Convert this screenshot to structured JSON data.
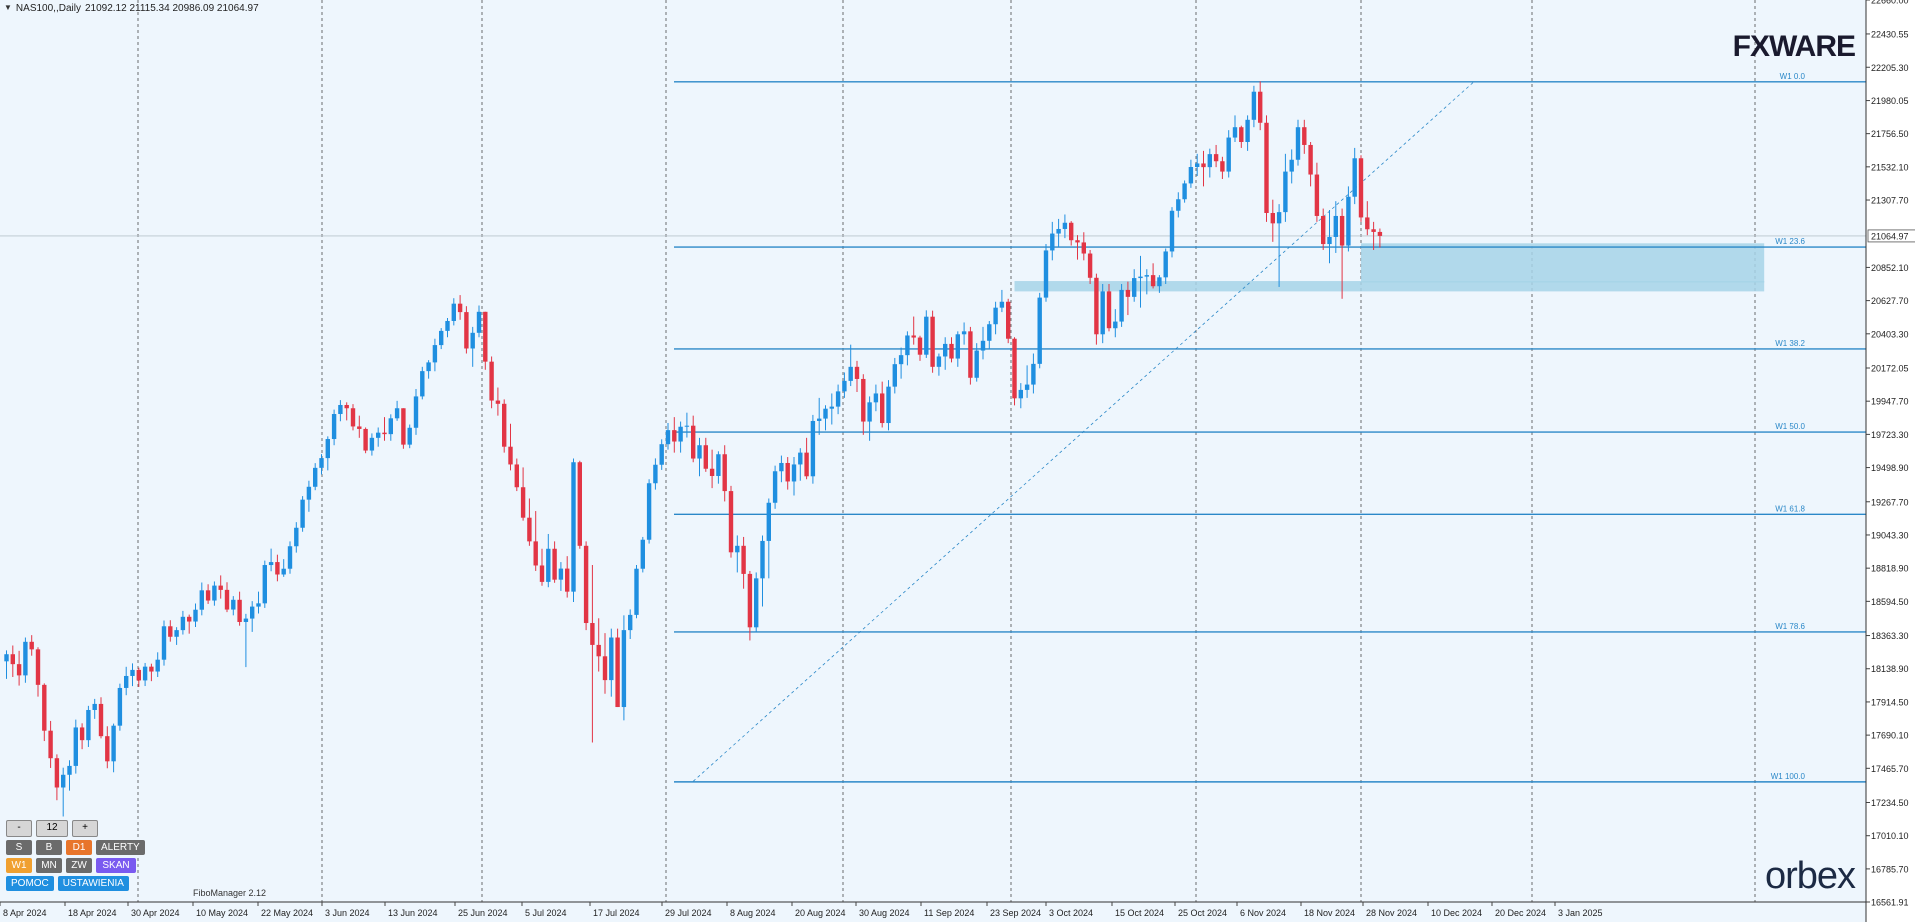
{
  "header": {
    "symbol": "NAS100,,Daily",
    "ohlc": "21092.12 21115.34 20986.09 21064.97"
  },
  "logos": {
    "top": "FXWARE",
    "bottom": "orbex"
  },
  "indicator_label": "FiboManager 2.12",
  "panel": {
    "row1": [
      "-",
      "12",
      "+"
    ],
    "row2": [
      "S",
      "B",
      "D1",
      "ALERTY"
    ],
    "row3": [
      "W1",
      "MN",
      "ZW",
      "SKAN"
    ],
    "row4": [
      "POMOC",
      "USTAWIENIA"
    ]
  },
  "colors": {
    "up": "#1f8fe0",
    "down": "#e23545",
    "fib": "#2b88c8",
    "zone": "#a6d4e8",
    "bg": "#eef6fd"
  },
  "chart_data": {
    "type": "candlestick",
    "title": "",
    "ylim": [
      16561.91,
      22660.0
    ],
    "y_ticks": [
      "22660.00",
      "22430.55",
      "22205.30",
      "21980.05",
      "21756.50",
      "21532.10",
      "21307.70",
      "21064.97",
      "20852.10",
      "20627.70",
      "20403.30",
      "20172.05",
      "19947.70",
      "19723.30",
      "19498.90",
      "19267.70",
      "19043.30",
      "18818.90",
      "18594.50",
      "18363.30",
      "18138.90",
      "17914.50",
      "17690.10",
      "17465.70",
      "17234.50",
      "17010.10",
      "16785.70",
      "16561.91"
    ],
    "x_ticks": [
      "8 Apr 2024",
      "18 Apr 2024",
      "30 Apr 2024",
      "10 May 2024",
      "22 May 2024",
      "3 Jun 2024",
      "13 Jun 2024",
      "25 Jun 2024",
      "5 Jul 2024",
      "17 Jul 2024",
      "29 Jul 2024",
      "8 Aug 2024",
      "20 Aug 2024",
      "30 Aug 2024",
      "11 Sep 2024",
      "23 Sep 2024",
      "3 Oct 2024",
      "15 Oct 2024",
      "25 Oct 2024",
      "6 Nov 2024",
      "18 Nov 2024",
      "28 Nov 2024",
      "10 Dec 2024",
      "20 Dec 2024",
      "3 Jan 2025"
    ],
    "current_price": "21064.97",
    "fib_levels": [
      {
        "label": "W1 0.0",
        "value": 22107
      },
      {
        "label": "W1 23.6",
        "value": 20990
      },
      {
        "label": "W1 38.2",
        "value": 20301
      },
      {
        "label": "W1 50.0",
        "value": 19739
      },
      {
        "label": "W1 61.8",
        "value": 19183
      },
      {
        "label": "W1 78.6",
        "value": 18388
      },
      {
        "label": "W1 100.0",
        "value": 17374
      }
    ],
    "zones": [
      {
        "from_index": 160,
        "to_index": 279,
        "low": 20690,
        "high": 20760
      },
      {
        "from_index": 215,
        "to_index": 279,
        "low": 20750,
        "high": 21015
      }
    ],
    "trendline": {
      "from": {
        "index": 109,
        "value": 17378
      },
      "to": {
        "index": 233,
        "value": 22110
      }
    },
    "candles": [
      [
        18189,
        18263,
        18070,
        18237
      ],
      [
        18237,
        18296,
        18083,
        18170
      ],
      [
        18170,
        18260,
        18025,
        18094
      ],
      [
        18094,
        18350,
        18044,
        18321
      ],
      [
        18321,
        18366,
        18227,
        18270
      ],
      [
        18270,
        18284,
        17950,
        18030
      ],
      [
        18030,
        18040,
        17650,
        17720
      ],
      [
        17720,
        17786,
        17468,
        17534
      ],
      [
        17534,
        17560,
        17250,
        17336
      ],
      [
        17336,
        17470,
        17140,
        17422
      ],
      [
        17422,
        17520,
        17315,
        17482
      ],
      [
        17482,
        17795,
        17430,
        17742
      ],
      [
        17742,
        17770,
        17595,
        17656
      ],
      [
        17656,
        17888,
        17610,
        17860
      ],
      [
        17860,
        17935,
        17800,
        17901
      ],
      [
        17901,
        17946,
        17668,
        17683
      ],
      [
        17683,
        17750,
        17466,
        17513
      ],
      [
        17513,
        17768,
        17439,
        17754
      ],
      [
        17754,
        18038,
        17720,
        18009
      ],
      [
        18009,
        18152,
        17960,
        18090
      ],
      [
        18090,
        18175,
        18021,
        18131
      ],
      [
        18131,
        18146,
        18016,
        18060
      ],
      [
        18060,
        18178,
        18022,
        18153
      ],
      [
        18153,
        18173,
        18055,
        18120
      ],
      [
        18120,
        18250,
        18083,
        18200
      ],
      [
        18200,
        18465,
        18160,
        18426
      ],
      [
        18426,
        18467,
        18322,
        18355
      ],
      [
        18355,
        18420,
        18300,
        18400
      ],
      [
        18400,
        18530,
        18370,
        18490
      ],
      [
        18490,
        18505,
        18376,
        18458
      ],
      [
        18458,
        18580,
        18421,
        18538
      ],
      [
        18538,
        18722,
        18500,
        18669
      ],
      [
        18669,
        18710,
        18577,
        18600
      ],
      [
        18600,
        18729,
        18565,
        18701
      ],
      [
        18701,
        18770,
        18613,
        18672
      ],
      [
        18672,
        18724,
        18522,
        18539
      ],
      [
        18539,
        18630,
        18500,
        18605
      ],
      [
        18605,
        18660,
        18430,
        18455
      ],
      [
        18455,
        18510,
        18150,
        18478
      ],
      [
        18478,
        18596,
        18388,
        18559
      ],
      [
        18559,
        18660,
        18512,
        18581
      ],
      [
        18581,
        18870,
        18550,
        18840
      ],
      [
        18840,
        18951,
        18798,
        18860
      ],
      [
        18860,
        18910,
        18730,
        18776
      ],
      [
        18776,
        18880,
        18760,
        18815
      ],
      [
        18815,
        19000,
        18781,
        18967
      ],
      [
        18967,
        19130,
        18924,
        19092
      ],
      [
        19092,
        19306,
        19065,
        19282
      ],
      [
        19282,
        19410,
        19200,
        19369
      ],
      [
        19369,
        19529,
        19346,
        19497
      ],
      [
        19497,
        19590,
        19452,
        19563
      ],
      [
        19563,
        19710,
        19480,
        19692
      ],
      [
        19692,
        19891,
        19650,
        19861
      ],
      [
        19861,
        19955,
        19812,
        19922
      ],
      [
        19922,
        19940,
        19818,
        19900
      ],
      [
        19900,
        19928,
        19750,
        19777
      ],
      [
        19777,
        19850,
        19700,
        19760
      ],
      [
        19760,
        19770,
        19596,
        19614
      ],
      [
        19614,
        19730,
        19580,
        19700
      ],
      [
        19700,
        19770,
        19640,
        19735
      ],
      [
        19735,
        19840,
        19680,
        19725
      ],
      [
        19725,
        19859,
        19680,
        19832
      ],
      [
        19832,
        19950,
        19815,
        19900
      ],
      [
        19900,
        19900,
        19626,
        19654
      ],
      [
        19654,
        19790,
        19630,
        19768
      ],
      [
        19768,
        20030,
        19720,
        19980
      ],
      [
        19980,
        20180,
        19960,
        20151
      ],
      [
        20151,
        20225,
        20100,
        20210
      ],
      [
        20210,
        20370,
        20150,
        20327
      ],
      [
        20327,
        20442,
        20300,
        20423
      ],
      [
        20423,
        20510,
        20380,
        20490
      ],
      [
        20490,
        20644,
        20460,
        20607
      ],
      [
        20607,
        20665,
        20498,
        20550
      ],
      [
        20550,
        20590,
        20270,
        20304
      ],
      [
        20304,
        20450,
        20180,
        20410
      ],
      [
        20410,
        20595,
        20380,
        20552
      ],
      [
        20552,
        20552,
        20160,
        20215
      ],
      [
        20215,
        20250,
        19900,
        19952
      ],
      [
        19952,
        20040,
        19850,
        19930
      ],
      [
        19930,
        19960,
        19600,
        19640
      ],
      [
        19640,
        19795,
        19480,
        19520
      ],
      [
        19520,
        19560,
        19340,
        19366
      ],
      [
        19366,
        19500,
        19140,
        19160
      ],
      [
        19160,
        19290,
        18970,
        19000
      ],
      [
        19000,
        19205,
        18800,
        18837
      ],
      [
        18837,
        18950,
        18700,
        18726
      ],
      [
        18726,
        19050,
        18690,
        18950
      ],
      [
        18950,
        19000,
        18720,
        18741
      ],
      [
        18741,
        18860,
        18665,
        18816
      ],
      [
        18816,
        18900,
        18620,
        18660
      ],
      [
        18660,
        19560,
        18590,
        19535
      ],
      [
        19535,
        19545,
        18950,
        18970
      ],
      [
        18970,
        19000,
        18400,
        18448
      ],
      [
        18448,
        18840,
        17640,
        18300
      ],
      [
        18300,
        18480,
        18120,
        18223
      ],
      [
        18223,
        18380,
        17970,
        18062
      ],
      [
        18062,
        18410,
        17950,
        18350
      ],
      [
        18350,
        18410,
        17880,
        17880
      ],
      [
        17880,
        18500,
        17790,
        18400
      ],
      [
        18400,
        18540,
        18340,
        18503
      ],
      [
        18503,
        18840,
        18480,
        18815
      ],
      [
        18815,
        19030,
        18790,
        19011
      ],
      [
        19011,
        19420,
        18985,
        19393
      ],
      [
        19393,
        19561,
        19350,
        19518
      ],
      [
        19518,
        19690,
        19483,
        19657
      ],
      [
        19657,
        19800,
        19620,
        19752
      ],
      [
        19752,
        19840,
        19600,
        19675
      ],
      [
        19675,
        19810,
        19600,
        19775
      ],
      [
        19775,
        19870,
        19702,
        19782
      ],
      [
        19782,
        19850,
        19535,
        19560
      ],
      [
        19560,
        19700,
        19440,
        19650
      ],
      [
        19650,
        19700,
        19470,
        19491
      ],
      [
        19491,
        19620,
        19360,
        19442
      ],
      [
        19442,
        19609,
        19390,
        19589
      ],
      [
        19589,
        19650,
        19270,
        19340
      ],
      [
        19340,
        19375,
        18890,
        18926
      ],
      [
        18926,
        19040,
        18790,
        18970
      ],
      [
        18970,
        19030,
        18680,
        18780
      ],
      [
        18780,
        18800,
        18330,
        18419
      ],
      [
        18419,
        18790,
        18390,
        18750
      ],
      [
        18750,
        19040,
        18560,
        19003
      ],
      [
        19003,
        19290,
        18750,
        19261
      ],
      [
        19261,
        19512,
        19220,
        19474
      ],
      [
        19474,
        19580,
        19400,
        19530
      ],
      [
        19530,
        19570,
        19350,
        19405
      ],
      [
        19405,
        19570,
        19310,
        19520
      ],
      [
        19520,
        19630,
        19410,
        19600
      ],
      [
        19600,
        19700,
        19420,
        19440
      ],
      [
        19440,
        19855,
        19390,
        19814
      ],
      [
        19814,
        19970,
        19720,
        19830
      ],
      [
        19830,
        19920,
        19750,
        19897
      ],
      [
        19897,
        20000,
        19790,
        19911
      ],
      [
        19911,
        20060,
        19860,
        20014
      ],
      [
        20014,
        20142,
        19970,
        20085
      ],
      [
        20085,
        20330,
        20050,
        20180
      ],
      [
        20180,
        20220,
        20010,
        20098
      ],
      [
        20098,
        20130,
        19720,
        19810
      ],
      [
        19810,
        19980,
        19680,
        19940
      ],
      [
        19940,
        20060,
        19880,
        20000
      ],
      [
        20000,
        20080,
        19770,
        19800
      ],
      [
        19800,
        20090,
        19750,
        20046
      ],
      [
        20046,
        20240,
        20000,
        20198
      ],
      [
        20198,
        20310,
        20100,
        20259
      ],
      [
        20259,
        20420,
        20190,
        20392
      ],
      [
        20392,
        20520,
        20330,
        20378
      ],
      [
        20378,
        20390,
        20220,
        20262
      ],
      [
        20262,
        20562,
        20240,
        20519
      ],
      [
        20519,
        20560,
        20140,
        20180
      ],
      [
        20180,
        20270,
        20120,
        20250
      ],
      [
        20250,
        20380,
        20160,
        20335
      ],
      [
        20335,
        20380,
        20210,
        20236
      ],
      [
        20236,
        20420,
        20180,
        20400
      ],
      [
        20400,
        20480,
        20330,
        20420
      ],
      [
        20420,
        20450,
        20060,
        20106
      ],
      [
        20106,
        20340,
        20080,
        20290
      ],
      [
        20290,
        20450,
        20230,
        20356
      ],
      [
        20356,
        20490,
        20300,
        20468
      ],
      [
        20468,
        20620,
        20400,
        20580
      ],
      [
        20580,
        20700,
        20550,
        20620
      ],
      [
        20620,
        20640,
        20340,
        20370
      ],
      [
        20370,
        20380,
        19919,
        19967
      ],
      [
        19967,
        20070,
        19900,
        20024
      ],
      [
        20024,
        20190,
        19970,
        20060
      ],
      [
        20060,
        20270,
        20000,
        20200
      ],
      [
        20200,
        20680,
        20170,
        20648
      ],
      [
        20648,
        21010,
        20620,
        20967
      ],
      [
        20967,
        21160,
        20900,
        21081
      ],
      [
        21081,
        21180,
        20990,
        21112
      ],
      [
        21112,
        21210,
        21050,
        21154
      ],
      [
        21154,
        21165,
        21000,
        21036
      ],
      [
        21036,
        21070,
        20905,
        21021
      ],
      [
        21021,
        21090,
        20900,
        20946
      ],
      [
        20946,
        20970,
        20740,
        20782
      ],
      [
        20782,
        20810,
        20330,
        20400
      ],
      [
        20400,
        20740,
        20340,
        20690
      ],
      [
        20690,
        20740,
        20420,
        20441
      ],
      [
        20441,
        20570,
        20380,
        20486
      ],
      [
        20486,
        20740,
        20450,
        20700
      ],
      [
        20700,
        20756,
        20530,
        20653
      ],
      [
        20653,
        20840,
        20620,
        20780
      ],
      [
        20780,
        20930,
        20580,
        20790
      ],
      [
        20790,
        20840,
        20670,
        20800
      ],
      [
        20800,
        20880,
        20710,
        20725
      ],
      [
        20725,
        20800,
        20680,
        20785
      ],
      [
        20785,
        20980,
        20740,
        20960
      ],
      [
        20960,
        21260,
        20920,
        21235
      ],
      [
        21235,
        21360,
        21190,
        21313
      ],
      [
        21313,
        21440,
        21290,
        21420
      ],
      [
        21420,
        21580,
        21390,
        21531
      ],
      [
        21531,
        21620,
        21470,
        21555
      ],
      [
        21555,
        21640,
        21400,
        21530
      ],
      [
        21530,
        21655,
        21460,
        21618
      ],
      [
        21618,
        21680,
        21530,
        21570
      ],
      [
        21570,
        21600,
        21450,
        21500
      ],
      [
        21500,
        21780,
        21460,
        21730
      ],
      [
        21730,
        21880,
        21700,
        21800
      ],
      [
        21800,
        21810,
        21660,
        21700
      ],
      [
        21700,
        21880,
        21640,
        21850
      ],
      [
        21850,
        22080,
        21800,
        22040
      ],
      [
        22040,
        22110,
        21780,
        21830
      ],
      [
        21830,
        21880,
        21160,
        21220
      ],
      [
        21220,
        21310,
        21025,
        21150
      ],
      [
        21150,
        21280,
        20720,
        21226
      ],
      [
        21226,
        21620,
        21160,
        21500
      ],
      [
        21500,
        21650,
        21420,
        21580
      ],
      [
        21580,
        21850,
        21540,
        21800
      ],
      [
        21800,
        21850,
        21620,
        21680
      ],
      [
        21680,
        21700,
        21400,
        21480
      ],
      [
        21480,
        21560,
        21160,
        21200
      ],
      [
        21200,
        21250,
        20970,
        21010
      ],
      [
        21010,
        21240,
        20880,
        21058
      ],
      [
        21058,
        21300,
        20950,
        21200
      ],
      [
        21200,
        21250,
        20640,
        21000
      ],
      [
        21000,
        21400,
        20960,
        21330
      ],
      [
        21330,
        21660,
        21280,
        21590
      ],
      [
        21590,
        21610,
        21160,
        21190
      ],
      [
        21190,
        21300,
        21070,
        21110
      ],
      [
        21110,
        21160,
        20970,
        21092
      ],
      [
        21092,
        21115,
        20986,
        21065
      ]
    ]
  }
}
